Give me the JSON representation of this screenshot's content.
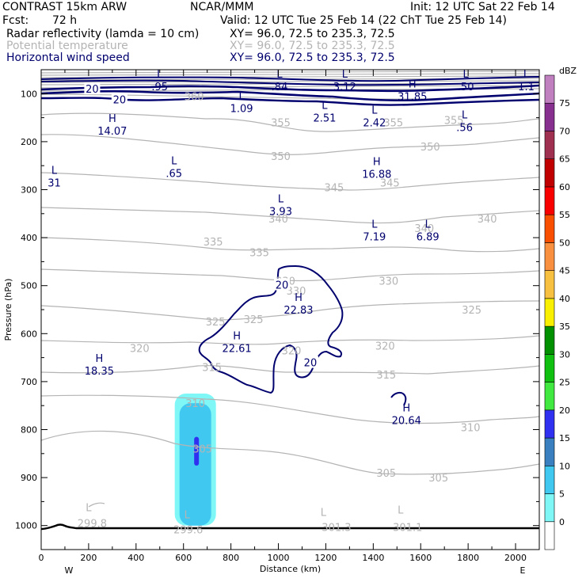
{
  "header": {
    "model": "CONTRAST 15km ARW",
    "center": "NCAR/MMM",
    "init": "Init: 12 UTC Sat 22 Feb 14",
    "fcst_label": "Fcst:",
    "fcst_value": "72 h",
    "valid": "Valid: 12 UTC Tue 25 Feb 14 (22 ChT Tue 25 Feb 14)",
    "fields": [
      {
        "name": "Radar reflectivity (lamda = 10 cm)",
        "xy": "XY=  96.0, 72.5 to 235.3, 72.5"
      },
      {
        "name": "Potential temperature",
        "xy": "XY=  96.0, 72.5 to 235.3, 72.5"
      },
      {
        "name": "Horizontal wind speed",
        "xy": "XY=  96.0, 72.5 to 235.3, 72.5"
      }
    ]
  },
  "colors": {
    "theta": "#b4b4b4",
    "wind": "#00006e",
    "ground": "#000000"
  },
  "chart_data": {
    "type": "contour-cross-section",
    "xlabel": "Distance (km)",
    "ylabel": "Pressure (hPa)",
    "xlim": [
      0,
      2100
    ],
    "ylim": [
      1050,
      50
    ],
    "x_ticks": [
      "0",
      "200",
      "400",
      "600",
      "800",
      "1000",
      "1200",
      "1400",
      "1600",
      "1800",
      "2000"
    ],
    "y_ticks": [
      "100",
      "200",
      "300",
      "400",
      "500",
      "600",
      "700",
      "800",
      "900",
      "1000"
    ],
    "west_label": "W",
    "east_label": "E",
    "colorbar": {
      "unit": "dBZ",
      "levels": [
        "0",
        "5",
        "10",
        "15",
        "20",
        "25",
        "30",
        "35",
        "40",
        "45",
        "50",
        "55",
        "60",
        "65",
        "70",
        "75"
      ],
      "colors": [
        "#ffffff",
        "#7ff7f7",
        "#40c8f0",
        "#3a80c0",
        "#3030f0",
        "#40e840",
        "#10c010",
        "#009000",
        "#f8f000",
        "#f8c040",
        "#f89040",
        "#f85000",
        "#f80000",
        "#c00000",
        "#a03050",
        "#883090",
        "#c080c0"
      ]
    },
    "reflectivity": [
      {
        "level": 5,
        "x": [
          650,
          650
        ],
        "p": [
          725,
          1000
        ]
      },
      {
        "level": 10,
        "x": [
          650,
          650
        ],
        "p": [
          745,
          1000
        ]
      },
      {
        "level": 15,
        "x": [
          655,
          655
        ],
        "p": [
          815,
          875
        ]
      }
    ],
    "theta_labels": [
      {
        "value": "360",
        "x": 645,
        "p": 105
      },
      {
        "value": "355",
        "x": 1010,
        "p": 160
      },
      {
        "value": "355",
        "x": 1485,
        "p": 160
      },
      {
        "value": "355",
        "x": 1740,
        "p": 155
      },
      {
        "value": "350",
        "x": 1640,
        "p": 210
      },
      {
        "value": "350",
        "x": 1010,
        "p": 230
      },
      {
        "value": "345",
        "x": 1235,
        "p": 295
      },
      {
        "value": "345",
        "x": 1470,
        "p": 285
      },
      {
        "value": "340",
        "x": 1000,
        "p": 360
      },
      {
        "value": "340",
        "x": 1615,
        "p": 380
      },
      {
        "value": "340",
        "x": 1880,
        "p": 360
      },
      {
        "value": "335",
        "x": 725,
        "p": 408
      },
      {
        "value": "335",
        "x": 920,
        "p": 430
      },
      {
        "value": "330",
        "x": 1030,
        "p": 490
      },
      {
        "value": "330",
        "x": 1075,
        "p": 510
      },
      {
        "value": "330",
        "x": 1465,
        "p": 490
      },
      {
        "value": "325",
        "x": 895,
        "p": 570
      },
      {
        "value": "325",
        "x": 1815,
        "p": 550
      },
      {
        "value": "325",
        "x": 735,
        "p": 575
      },
      {
        "value": "320",
        "x": 415,
        "p": 630
      },
      {
        "value": "320",
        "x": 1055,
        "p": 635
      },
      {
        "value": "320",
        "x": 1450,
        "p": 625
      },
      {
        "value": "315",
        "x": 720,
        "p": 670
      },
      {
        "value": "315",
        "x": 1455,
        "p": 685
      },
      {
        "value": "310",
        "x": 650,
        "p": 745
      },
      {
        "value": "310",
        "x": 1810,
        "p": 795
      },
      {
        "value": "305",
        "x": 680,
        "p": 840
      },
      {
        "value": "305",
        "x": 1455,
        "p": 890
      },
      {
        "value": "305",
        "x": 1675,
        "p": 900
      },
      {
        "value": "299.8",
        "x": 215,
        "p": 995
      },
      {
        "value": "299.6",
        "x": 620,
        "p": 1008
      },
      {
        "value": "301.3",
        "x": 1245,
        "p": 1003
      },
      {
        "value": "301.1",
        "x": 1545,
        "p": 1003
      }
    ],
    "theta_extrema": [
      {
        "mark": "L",
        "value": "299.8",
        "x": 200,
        "p": 970
      },
      {
        "mark": "L",
        "value": "299.6",
        "x": 615,
        "p": 985
      },
      {
        "mark": "L",
        "value": "301.3",
        "x": 1190,
        "p": 980
      },
      {
        "mark": "L",
        "value": "301.1",
        "x": 1515,
        "p": 975
      }
    ],
    "wind_labels": [
      {
        "value": "20",
        "x": 215,
        "p": 90
      },
      {
        "value": "20",
        "x": 330,
        "p": 112
      },
      {
        "value": "20",
        "x": 1015,
        "p": 498
      },
      {
        "value": "20",
        "x": 1135,
        "p": 660
      }
    ],
    "wind_extrema": [
      {
        "mark": "L",
        "value": ".95",
        "x": 500,
        "p": 80
      },
      {
        "mark": "L",
        "value": ".84",
        "x": 1005,
        "p": 80
      },
      {
        "mark": "L",
        "value": "3.12",
        "x": 1280,
        "p": 80
      },
      {
        "mark": "L",
        "value": ".50",
        "x": 1790,
        "p": 80
      },
      {
        "mark": "L",
        "value": "1.1",
        "x": 2045,
        "p": 80
      },
      {
        "mark": "H",
        "value": "31.85",
        "x": 1565,
        "p": 100
      },
      {
        "mark": "L",
        "value": "1.09",
        "x": 845,
        "p": 125
      },
      {
        "mark": "L",
        "value": "2.51",
        "x": 1195,
        "p": 145
      },
      {
        "mark": "L",
        "value": "2.42",
        "x": 1405,
        "p": 155
      },
      {
        "mark": "L",
        "value": ".56",
        "x": 1785,
        "p": 165
      },
      {
        "mark": "H",
        "value": "14.07",
        "x": 300,
        "p": 172
      },
      {
        "mark": "L",
        "value": ".65",
        "x": 560,
        "p": 260
      },
      {
        "mark": "L",
        "value": "31",
        "x": 55,
        "p": 280
      },
      {
        "mark": "H",
        "value": "16.88",
        "x": 1415,
        "p": 262
      },
      {
        "mark": "L",
        "value": "3.93",
        "x": 1010,
        "p": 340
      },
      {
        "mark": "L",
        "value": "7.19",
        "x": 1405,
        "p": 392
      },
      {
        "mark": "L",
        "value": "6.89",
        "x": 1630,
        "p": 392
      },
      {
        "mark": "H",
        "value": "22.83",
        "x": 1085,
        "p": 545
      },
      {
        "mark": "H",
        "value": "22.61",
        "x": 825,
        "p": 625
      },
      {
        "mark": "H",
        "value": "18.35",
        "x": 245,
        "p": 672
      },
      {
        "mark": "H",
        "value": "20.64",
        "x": 1540,
        "p": 775
      }
    ]
  }
}
